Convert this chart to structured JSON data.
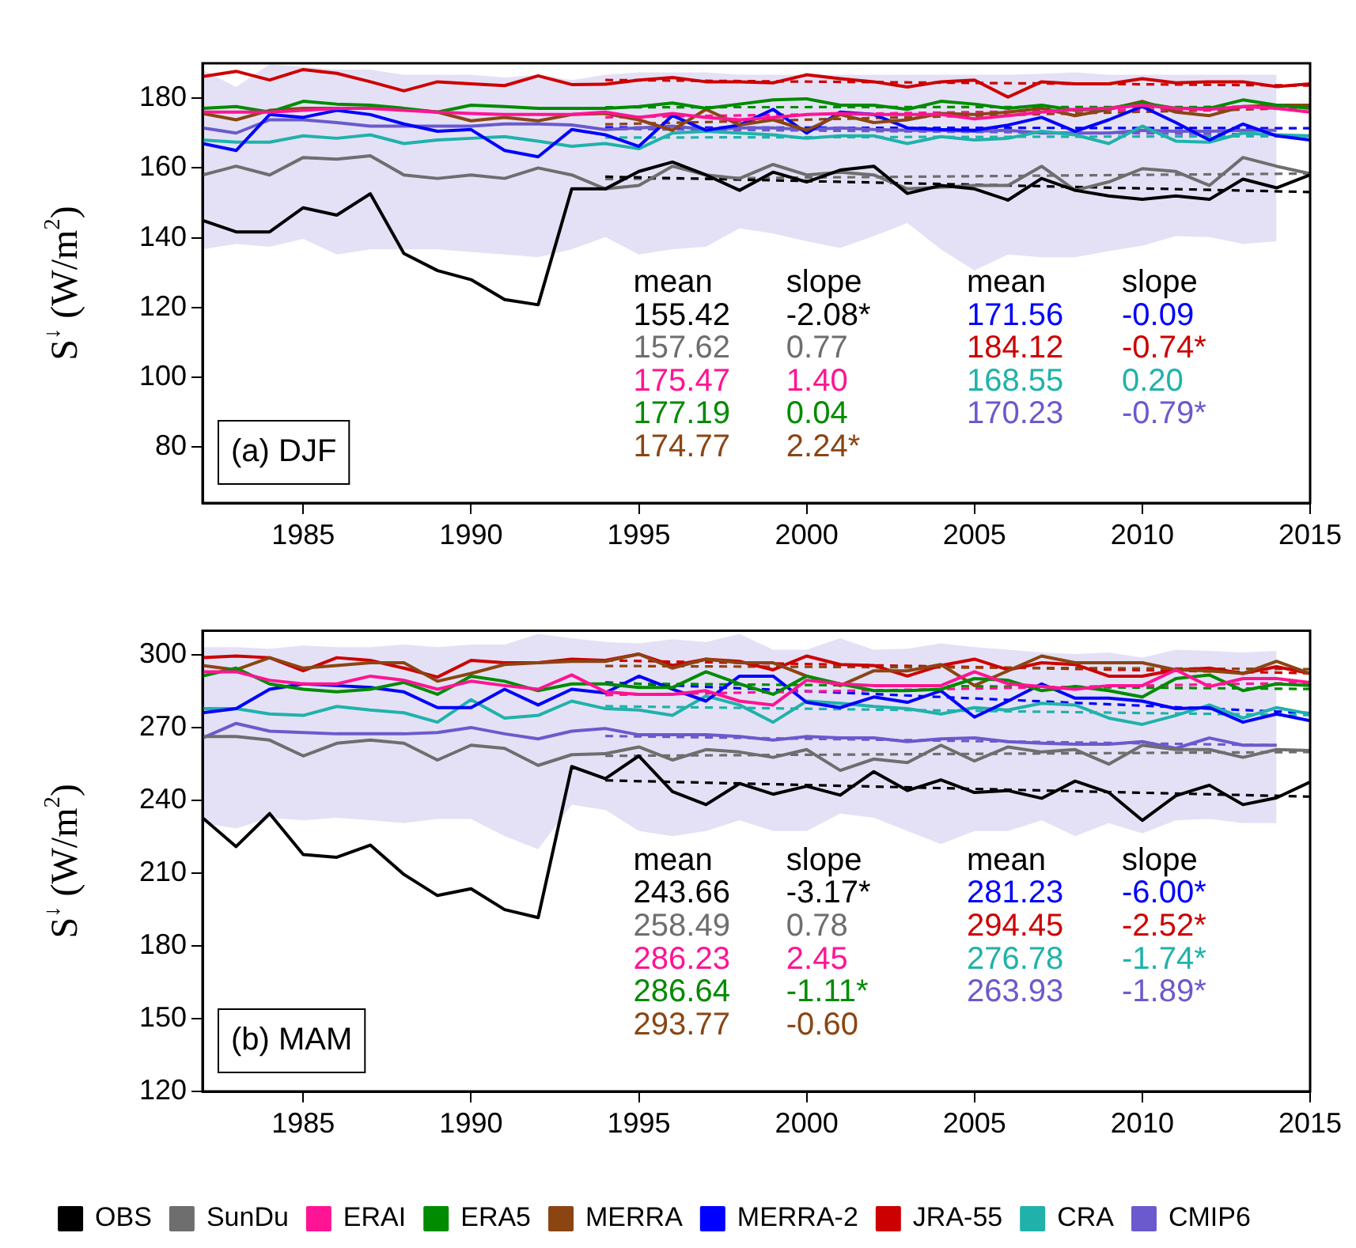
{
  "chart_data": [
    {
      "type": "line",
      "title": "(a) DJF",
      "ylabel": "S$^{↓}$ (W/m$^{2}$)",
      "x": [
        1982,
        1983,
        1984,
        1985,
        1986,
        1987,
        1988,
        1989,
        1990,
        1991,
        1992,
        1993,
        1994,
        1995,
        1996,
        1997,
        1998,
        1999,
        2000,
        2001,
        2002,
        2003,
        2004,
        2005,
        2006,
        2007,
        2008,
        2009,
        2010,
        2011,
        2012,
        2013,
        2014,
        2015
      ],
      "xlim": [
        1982,
        2015
      ],
      "xticks": [
        1985,
        1990,
        1995,
        2000,
        2005,
        2010,
        2015
      ],
      "ylim": [
        64,
        190
      ],
      "yticks": [
        80,
        100,
        120,
        140,
        160,
        180
      ],
      "grid": false,
      "legend": false,
      "marker": "none",
      "series": [
        {
          "color": "#000000",
          "values": [
            145,
            141.7,
            141.7,
            148.6,
            146.5,
            152.6,
            135.5,
            130.6,
            128,
            122.3,
            120.8,
            154,
            154,
            159,
            161.7,
            158,
            153.6,
            158.8,
            156,
            159.4,
            160.5,
            152.7,
            155,
            154,
            150.8,
            157,
            153.6,
            152,
            151,
            152,
            151,
            156.8,
            154.3,
            158
          ]
        },
        {
          "color": "#6e6e6e",
          "values": [
            158,
            160.5,
            158,
            163,
            162.5,
            163.5,
            158,
            157,
            158,
            157,
            160,
            158,
            154,
            155,
            160.5,
            158,
            157,
            161,
            158,
            158.8,
            158,
            154,
            154.5,
            155,
            155,
            160.5,
            153.6,
            156,
            159.8,
            159,
            155,
            163,
            160.5,
            158.4
          ]
        },
        {
          "color": "#ff1493",
          "values": [
            176,
            176,
            176,
            176.5,
            177.1,
            177.1,
            176.5,
            176,
            175.6,
            175.3,
            175.3,
            175.3,
            176,
            174.5,
            175.6,
            174.5,
            173.8,
            174.5,
            175.3,
            175.6,
            175.3,
            175.3,
            175.3,
            174.1,
            175,
            176,
            176.8,
            177.1,
            178,
            177.1,
            176.8,
            177.6,
            177.1,
            176
          ]
        },
        {
          "color": "#008b00",
          "values": [
            177.1,
            177.6,
            176,
            179.1,
            178.3,
            178,
            177.1,
            176,
            178,
            177.6,
            177.1,
            177.1,
            177.1,
            177.6,
            178.6,
            177.1,
            178.3,
            179.5,
            179.8,
            178,
            178,
            176.8,
            179.1,
            178.3,
            177.1,
            178,
            176.5,
            177.1,
            178.6,
            177.1,
            177.1,
            179.5,
            178,
            177.1
          ]
        },
        {
          "color": "#8b4513",
          "values": [
            175.6,
            173.8,
            176.5,
            177.1,
            177.1,
            177.1,
            176.8,
            176,
            173.5,
            174.5,
            173.5,
            175.3,
            175.6,
            173.8,
            170.8,
            176.8,
            172.3,
            173.8,
            170.8,
            175.3,
            173,
            173.8,
            175.6,
            175.3,
            176,
            177.1,
            175,
            176.8,
            179.1,
            176,
            175,
            177.6,
            178,
            178
          ]
        },
        {
          "color": "#0000ff",
          "values": [
            167,
            165,
            175.3,
            174.5,
            176.5,
            175.3,
            172.6,
            170.5,
            171,
            165,
            163.2,
            171,
            169.5,
            166.2,
            175,
            170.8,
            172.3,
            176.8,
            170,
            176,
            175.3,
            171.5,
            171,
            170.8,
            172.3,
            174.5,
            170.5,
            173.8,
            177.6,
            173,
            168,
            172.6,
            169.2,
            168
          ]
        },
        {
          "color": "#cd0000",
          "values": [
            186.2,
            187.7,
            185.2,
            188.2,
            187.1,
            184.7,
            182.1,
            184.7,
            184.1,
            183.6,
            186.4,
            183.9,
            184,
            185.2,
            185.9,
            184.7,
            184.7,
            184.4,
            186.7,
            185.6,
            184.7,
            183.2,
            184.7,
            185.2,
            180.3,
            184.7,
            184.1,
            184.1,
            185.6,
            184.4,
            184.7,
            184.7,
            183.3,
            184.1
          ]
        },
        {
          "color": "#20b2aa",
          "values": [
            168,
            167.4,
            167.4,
            169.2,
            168.5,
            169.5,
            167,
            168,
            168.5,
            169,
            167.7,
            166.2,
            167,
            165.5,
            170,
            170.5,
            170,
            169.5,
            168.5,
            169.2,
            169.2,
            167,
            169,
            168,
            168.5,
            170.5,
            169.5,
            167,
            172,
            167.7,
            167.4,
            170,
            169.5,
            169.2
          ]
        },
        {
          "color": "#6a5acd",
          "values": [
            171.5,
            170,
            173.8,
            173.8,
            173,
            172,
            172,
            172,
            172,
            172.6,
            172.6,
            172.3,
            171,
            171.5,
            172,
            171,
            171.5,
            171.5,
            171,
            171.5,
            171,
            170.8,
            170.8,
            170.5,
            170.8,
            170,
            170,
            170,
            170.8,
            170.5,
            170.5,
            170.8,
            170.8,
            null
          ],
          "upper": [
            188.2,
            183.2,
            189.7,
            189,
            188.2,
            188.2,
            186.7,
            186.7,
            186.7,
            185.9,
            186.7,
            185.2,
            186.7,
            187.4,
            187.4,
            187.4,
            186.7,
            186.7,
            186.7,
            186.7,
            186.7,
            186.7,
            186.7,
            186.7,
            186.7,
            187,
            187.4,
            186.7,
            186.7,
            186.7,
            186.7,
            186.7,
            186.7,
            null
          ],
          "lower": [
            136.7,
            138.2,
            137.4,
            139.7,
            135.2,
            136.7,
            136.7,
            136.7,
            135.9,
            135.2,
            134.4,
            136.7,
            140.2,
            135.2,
            136.7,
            137.4,
            142.7,
            141.2,
            139,
            137.1,
            140.5,
            144.2,
            136.7,
            130.6,
            135.2,
            134.4,
            134.4,
            136.2,
            137.7,
            140.5,
            140.2,
            138.2,
            139,
            null
          ]
        },
        {
          "type": "line",
          "line_style": "dashed",
          "color": "#000000",
          "x": [
            1994,
            2015
          ],
          "values": [
            157.5,
            153.1
          ]
        },
        {
          "type": "line",
          "line_style": "dashed",
          "color": "#6e6e6e",
          "x": [
            1994,
            2015
          ],
          "values": [
            156.8,
            158.4
          ]
        },
        {
          "type": "line",
          "line_style": "dashed",
          "color": "#ff1493",
          "x": [
            1994,
            2015
          ],
          "values": [
            174.5,
            177.4
          ]
        },
        {
          "type": "line",
          "line_style": "dashed",
          "color": "#008b00",
          "x": [
            1994,
            2015
          ],
          "values": [
            177.4,
            177.5
          ]
        },
        {
          "type": "line",
          "line_style": "dashed",
          "color": "#8b4513",
          "x": [
            1994,
            2015
          ],
          "values": [
            172.5,
            177.2
          ]
        },
        {
          "type": "line",
          "line_style": "dashed",
          "color": "#0000ff",
          "x": [
            1994,
            2015
          ],
          "values": [
            171.6,
            171.4
          ]
        },
        {
          "type": "line",
          "line_style": "dashed",
          "color": "#cd0000",
          "x": [
            1994,
            2015
          ],
          "values": [
            185.2,
            183.6
          ]
        },
        {
          "type": "line",
          "line_style": "dashed",
          "color": "#20b2aa",
          "x": [
            1994,
            2015
          ],
          "values": [
            168.7,
            169.1
          ]
        },
        {
          "type": "line",
          "line_style": "dashed",
          "color": "#6a5acd",
          "x": [
            1994,
            2014
          ],
          "values": [
            171.2,
            169.6
          ]
        }
      ],
      "annotations": [
        "mean",
        "slope",
        "mean",
        "slope",
        "155.42",
        "-2.08*",
        "157.62",
        "0.77",
        "175.47",
        "1.40",
        "177.19",
        "0.04",
        "174.77",
        "2.24*",
        "171.56",
        "-0.09",
        "184.12",
        "-0.74*",
        "168.55",
        "0.20",
        "170.23",
        "-0.79*"
      ]
    },
    {
      "type": "line",
      "title": "(b) MAM",
      "ylabel": "S$^{↓}$ (W/m$^{2}$)",
      "x": [
        1982,
        1983,
        1984,
        1985,
        1986,
        1987,
        1988,
        1989,
        1990,
        1991,
        1992,
        1993,
        1994,
        1995,
        1996,
        1997,
        1998,
        1999,
        2000,
        2001,
        2002,
        2003,
        2004,
        2005,
        2006,
        2007,
        2008,
        2009,
        2010,
        2011,
        2012,
        2013,
        2014,
        2015
      ],
      "xlim": [
        1982,
        2015
      ],
      "xticks": [
        1985,
        1990,
        1995,
        2000,
        2005,
        2010,
        2015
      ],
      "ylim": [
        120,
        310
      ],
      "yticks": [
        120,
        150,
        180,
        210,
        240,
        270,
        300
      ],
      "grid": false,
      "legend": "bottom",
      "marker": "none",
      "series": [
        {
          "name": "OBS",
          "color": "#000000",
          "values": [
            232.9,
            221,
            234.6,
            217.7,
            216.6,
            221.6,
            209.5,
            200.8,
            203.6,
            195,
            191.7,
            254,
            249,
            258.4,
            243.7,
            238.3,
            247,
            242.6,
            245.9,
            242.2,
            251.9,
            244.1,
            248.5,
            243.3,
            244.1,
            240.9,
            248,
            243.3,
            231.8,
            242,
            246.3,
            238.3,
            241.1,
            247.6
          ]
        },
        {
          "name": "SunDu",
          "color": "#6e6e6e",
          "values": [
            266.4,
            266.4,
            264.9,
            258.4,
            263.6,
            264.9,
            263.6,
            256.7,
            262.8,
            261.5,
            254.5,
            258.9,
            259.3,
            262.1,
            256.7,
            261,
            260,
            257.8,
            261,
            252.4,
            257.1,
            255.6,
            262.8,
            256.3,
            262.1,
            260,
            261,
            255,
            262.8,
            261,
            261,
            257.8,
            261,
            260.6
          ]
        },
        {
          "name": "ERAI",
          "color": "#ff1493",
          "values": [
            293.1,
            293.1,
            289.6,
            288.1,
            288.1,
            291.3,
            289.6,
            285.9,
            289.2,
            287.4,
            285.9,
            291.8,
            284.8,
            283.8,
            283.8,
            285.3,
            281,
            279.4,
            289.6,
            288.1,
            287.4,
            287.4,
            287.4,
            293.1,
            288.1,
            287,
            285.9,
            287.4,
            287.4,
            293.9,
            287,
            290.3,
            290.3,
            288.7
          ]
        },
        {
          "name": "ERA5",
          "color": "#008b00",
          "values": [
            291.3,
            294.6,
            288.1,
            285.9,
            284.8,
            285.9,
            288.7,
            283.8,
            291.3,
            289.2,
            285.3,
            288.1,
            288.1,
            286.6,
            286.6,
            293.1,
            288.1,
            283.8,
            291.3,
            288.1,
            285.3,
            285.3,
            285.9,
            290.3,
            289.6,
            285.3,
            287,
            285.3,
            282.7,
            290.3,
            291.8,
            285.3,
            288.1,
            287.4
          ]
        },
        {
          "name": "MERRA",
          "color": "#8b4513",
          "values": [
            295.7,
            293.9,
            298.9,
            294.6,
            295.7,
            296.8,
            296.8,
            289.2,
            292.4,
            296.1,
            296.8,
            297.4,
            297.4,
            300.4,
            294.6,
            298.3,
            296.8,
            296.8,
            291.3,
            287.4,
            293.5,
            293.5,
            296.1,
            287.4,
            293.5,
            299.6,
            296.8,
            296.8,
            296.8,
            293.9,
            293.5,
            292.4,
            297.4,
            292.4
          ]
        },
        {
          "name": "MERRA-2",
          "color": "#0000ff",
          "values": [
            276.2,
            277.9,
            285.9,
            288.1,
            287.4,
            286.6,
            284.8,
            278.3,
            278.3,
            285.9,
            279.4,
            285.9,
            284.4,
            291.3,
            285.9,
            281,
            291.3,
            291.3,
            280.5,
            278.3,
            282.7,
            280.5,
            285.3,
            274.4,
            281,
            288.1,
            282.2,
            282.2,
            281,
            277.9,
            278.3,
            272.3,
            275.7,
            272.9
          ]
        },
        {
          "name": "JRA-55",
          "color": "#cd0000",
          "values": [
            298.9,
            299.6,
            298.9,
            293.5,
            298.9,
            297.8,
            294.6,
            290.9,
            297.8,
            296.8,
            296.8,
            298.3,
            297.8,
            300.4,
            295.7,
            298.3,
            297.4,
            293.9,
            299.6,
            296.1,
            295.7,
            291.3,
            295.7,
            298.3,
            293.9,
            296.8,
            296.1,
            291.3,
            291.3,
            293.9,
            294.6,
            292.4,
            295.2,
            292.4
          ]
        },
        {
          "name": "CRA",
          "color": "#20b2aa",
          "values": [
            277.9,
            277.9,
            275.7,
            275.1,
            278.8,
            277.3,
            276.2,
            272.3,
            281.6,
            274,
            275.1,
            281,
            277.9,
            277.3,
            275.1,
            283.1,
            279.4,
            272.3,
            281,
            280.1,
            278.8,
            277.9,
            275.7,
            278.3,
            277.3,
            280.1,
            279.4,
            274,
            271.4,
            275.1,
            279.4,
            274,
            278.3,
            275.7
          ]
        },
        {
          "name": "CMIP6",
          "color": "#6a5acd",
          "values": [
            265.8,
            271.8,
            268.6,
            268,
            267.5,
            267.5,
            267.5,
            268,
            270.1,
            267.5,
            265.4,
            268.6,
            269.7,
            267.1,
            267.1,
            267.1,
            266.4,
            264.9,
            266.4,
            265.8,
            265.8,
            264.3,
            265.4,
            265.8,
            264.3,
            263.6,
            263.2,
            263.2,
            264.3,
            261.5,
            265.8,
            262.8,
            262.8,
            null
          ],
          "upper": [
            303.3,
            303.3,
            302.6,
            303.9,
            303.3,
            303.3,
            304.3,
            303.3,
            304.3,
            304.3,
            308.7,
            306.9,
            305.4,
            304.8,
            306.5,
            305.4,
            308.7,
            302.2,
            302.2,
            306.9,
            302.2,
            302.6,
            304.8,
            303.3,
            302.2,
            301.1,
            300.4,
            301.1,
            298.9,
            302.2,
            301.7,
            301.1,
            301.7,
            null
          ],
          "lower": [
            230.7,
            228.5,
            232.9,
            231.8,
            232.9,
            231.8,
            230.7,
            232.4,
            232.4,
            225.3,
            219.9,
            238.3,
            236.1,
            227.4,
            225.3,
            227.4,
            231.8,
            227.4,
            227.4,
            234.6,
            232.9,
            227.4,
            222,
            227.4,
            227.4,
            231.8,
            225.3,
            230.7,
            226.4,
            231.8,
            232.4,
            230.7,
            230.7,
            null
          ]
        },
        {
          "type": "line",
          "line_style": "dashed",
          "color": "#000000",
          "x": [
            1994,
            2015
          ],
          "values": [
            248.3,
            241.6
          ]
        },
        {
          "type": "line",
          "line_style": "dashed",
          "color": "#6e6e6e",
          "x": [
            1994,
            2015
          ],
          "values": [
            258.4,
            260
          ]
        },
        {
          "type": "line",
          "line_style": "dashed",
          "color": "#ff1493",
          "x": [
            1994,
            2015
          ],
          "values": [
            283.5,
            288.6
          ]
        },
        {
          "type": "line",
          "line_style": "dashed",
          "color": "#008b00",
          "x": [
            1994,
            2015
          ],
          "values": [
            288.3,
            286
          ]
        },
        {
          "type": "line",
          "line_style": "dashed",
          "color": "#8b4513",
          "x": [
            1994,
            2015
          ],
          "values": [
            295.5,
            294.2
          ]
        },
        {
          "type": "line",
          "line_style": "dashed",
          "color": "#0000ff",
          "x": [
            1994,
            2015
          ],
          "values": [
            288.7,
            276.1
          ]
        },
        {
          "type": "line",
          "line_style": "dashed",
          "color": "#cd0000",
          "x": [
            1994,
            2015
          ],
          "values": [
            297.8,
            292.5
          ]
        },
        {
          "type": "line",
          "line_style": "dashed",
          "color": "#20b2aa",
          "x": [
            1994,
            2015
          ],
          "values": [
            278.9,
            275.2
          ]
        },
        {
          "type": "line",
          "line_style": "dashed",
          "color": "#6a5acd",
          "x": [
            1994,
            2014
          ],
          "values": [
            266.6,
            262.8
          ]
        }
      ],
      "annotations": [
        "mean",
        "slope",
        "mean",
        "slope",
        "243.66",
        "-3.17*",
        "258.49",
        "0.78",
        "286.23",
        "2.45",
        "286.64",
        "-1.11*",
        "293.77",
        "-0.60",
        "281.23",
        "-6.00*",
        "294.45",
        "-2.52*",
        "276.78",
        "-1.74*",
        "263.93",
        "-1.89*"
      ]
    }
  ]
}
